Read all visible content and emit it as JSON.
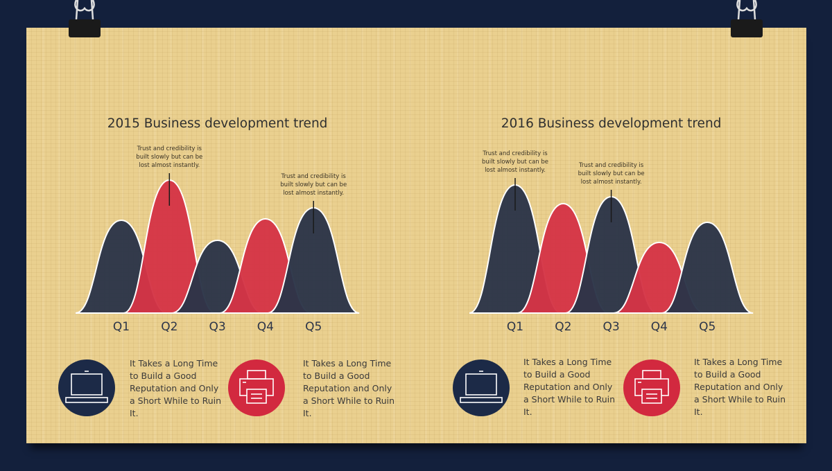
{
  "chart_data": [
    {
      "type": "peak",
      "title": "2015 Business development trend",
      "categories": [
        "Q1",
        "Q2",
        "Q3",
        "Q4",
        "Q5"
      ],
      "values": [
        134,
        192,
        105,
        136,
        152
      ],
      "colors": [
        "#2b3448",
        "#d43446",
        "#2b3448",
        "#d43446",
        "#2b3448"
      ],
      "ylim": [
        0,
        200
      ],
      "annotations": [
        {
          "text": "Trust and credibility is built slowly but can be lost almost instantly.",
          "category": "Q2"
        },
        {
          "text": "Trust and credibility is built slowly but can be lost almost instantly.",
          "category": "Q5"
        }
      ]
    },
    {
      "type": "peak",
      "title": "2016 Business development trend",
      "categories": [
        "Q1",
        "Q2",
        "Q3",
        "Q4",
        "Q5"
      ],
      "values": [
        185,
        158,
        168,
        102,
        131
      ],
      "colors": [
        "#2b3448",
        "#d43446",
        "#2b3448",
        "#d43446",
        "#2b3448"
      ],
      "ylim": [
        0,
        200
      ],
      "annotations": [
        {
          "text": "Trust and credibility is built slowly but can be lost almost instantly.",
          "category": "Q1"
        },
        {
          "text": "Trust and credibility is built slowly but can be lost almost instantly.",
          "category": "Q3"
        }
      ]
    }
  ],
  "features": [
    {
      "text": "It Takes a Long Time to Build a Good Reputation and Only a Short While to Ruin It."
    },
    {
      "text": "It Takes a Long Time to Build a Good Reputation and Only a Short While to Ruin It."
    },
    {
      "text": "It Takes a Long Time to Build a Good Reputation and Only a Short While to Ruin It."
    },
    {
      "text": "It Takes a Long Time to Build a Good Reputation and Only a Short While to Ruin It."
    }
  ]
}
